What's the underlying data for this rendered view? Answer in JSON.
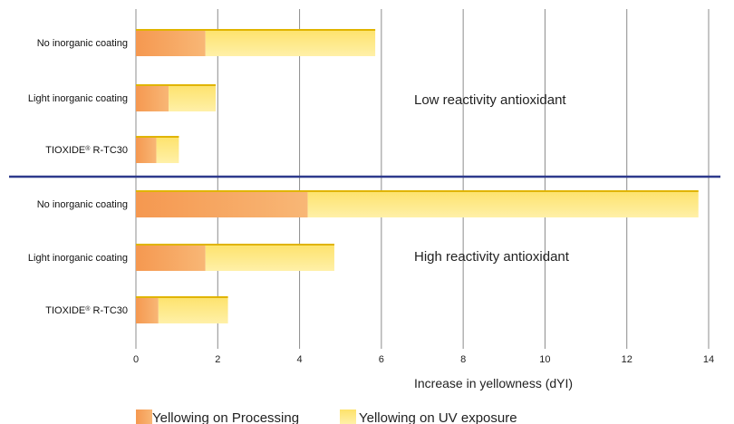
{
  "chart_data": {
    "type": "bar",
    "orientation": "horizontal",
    "stacked": true,
    "categories": [
      "No inorganic coating",
      "Light inorganic coating",
      "TIOXIDE® R-TC30",
      "No inorganic coating",
      "Light inorganic coating",
      "TIOXIDE® R-TC30"
    ],
    "series": [
      {
        "name": "Yellowing on Processing",
        "color": "#f5a35c",
        "values": [
          1.7,
          0.8,
          0.5,
          4.2,
          1.7,
          0.55
        ]
      },
      {
        "name": "Yellowing on UV exposure",
        "color": "#fde47a",
        "values": [
          4.15,
          1.15,
          0.55,
          9.55,
          3.15,
          1.7
        ]
      }
    ],
    "groups": [
      {
        "label": "Low reactivity antioxidant",
        "categories": [
          0,
          1,
          2
        ]
      },
      {
        "label": "High reactivity antioxidant",
        "categories": [
          3,
          4,
          5
        ]
      }
    ],
    "xlabel": "Increase in yellowness (dYI)",
    "xlim": [
      0,
      14
    ],
    "xticks": [
      0,
      2,
      4,
      6,
      8,
      10,
      12,
      14
    ],
    "grid": "vertical",
    "legend": "bottom",
    "separator_color": "#2e3a8c"
  }
}
